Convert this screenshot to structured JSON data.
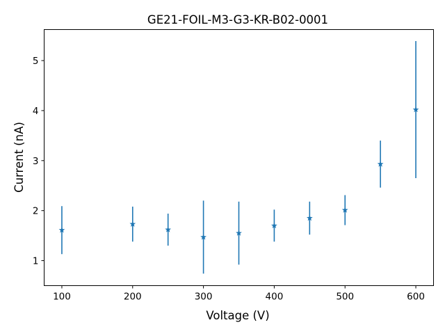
{
  "chart_data": {
    "type": "scatter",
    "title": "GE21-FOIL-M3-G3-KR-B02-0001",
    "xlabel": "Voltage (V)",
    "ylabel": "Current (nA)",
    "xlim": [
      75,
      625
    ],
    "ylim": [
      0.5,
      5.62
    ],
    "xticks": [
      100,
      200,
      300,
      400,
      500,
      600
    ],
    "yticks": [
      1,
      2,
      3,
      4,
      5
    ],
    "xtick_labels": [
      "100",
      "200",
      "300",
      "400",
      "500",
      "600"
    ],
    "ytick_labels": [
      "1",
      "2",
      "3",
      "4",
      "5"
    ],
    "grid": false,
    "marker": "star",
    "color": "#1f77b4",
    "x": [
      100,
      200,
      250,
      300,
      350,
      400,
      450,
      500,
      550,
      600
    ],
    "y": [
      1.61,
      1.73,
      1.62,
      1.47,
      1.55,
      1.7,
      1.85,
      2.01,
      2.93,
      4.02
    ],
    "yerr": [
      0.48,
      0.35,
      0.32,
      0.73,
      0.63,
      0.32,
      0.33,
      0.3,
      0.47,
      1.37
    ]
  }
}
